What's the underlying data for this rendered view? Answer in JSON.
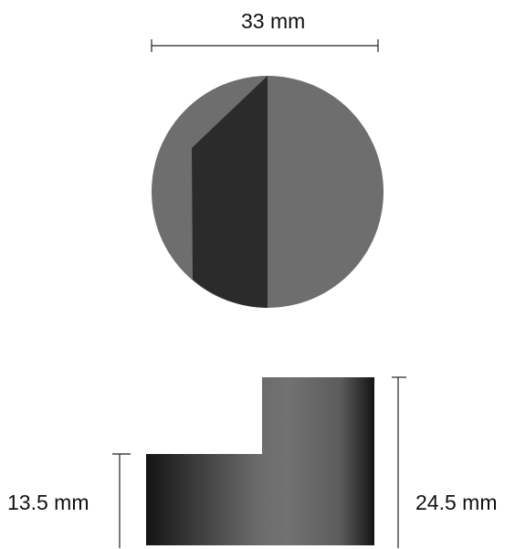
{
  "dimensions": {
    "diameter": "33 mm",
    "total_height": "24.5 mm",
    "step_height": "13.5 mm"
  },
  "colors": {
    "face_light": "#6e6e6e",
    "face_dark": "#2b2b2b",
    "dimension_line": "#222222",
    "side_gradient_stops": [
      "#141414",
      "#3c3c3c",
      "#6c6c6c",
      "#727272",
      "#5c5c5c",
      "#141414"
    ]
  }
}
